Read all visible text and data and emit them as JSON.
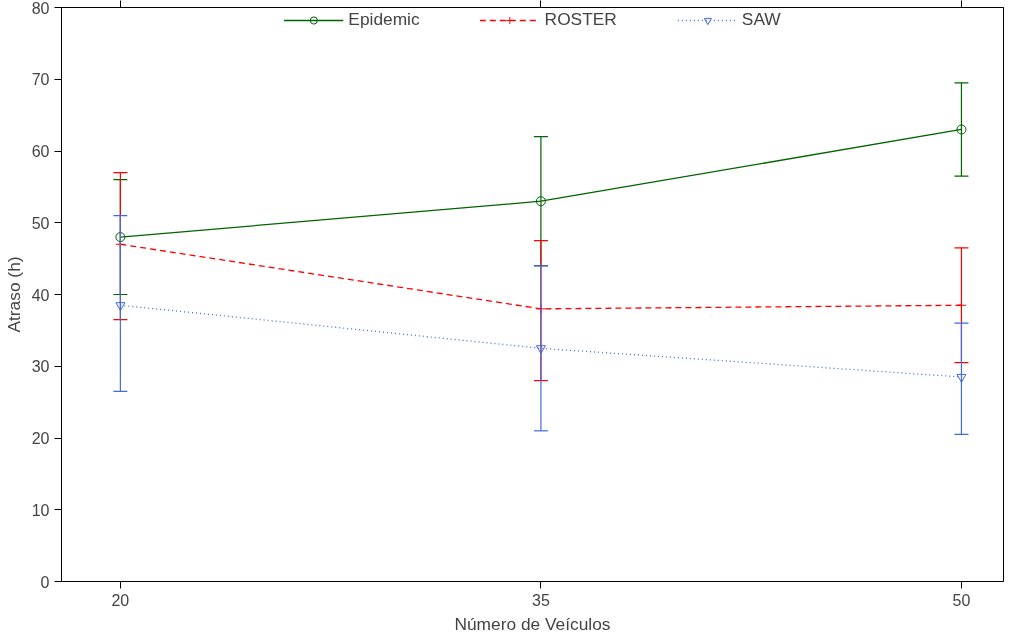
{
  "chart_data": {
    "type": "line",
    "xlabel": "Número de Veículos",
    "ylabel": "Atraso (h)",
    "x": [
      20,
      35,
      50
    ],
    "xlim": [
      17.9,
      51.5
    ],
    "xticks": [
      20,
      35,
      50
    ],
    "ylim": [
      0,
      80
    ],
    "yticks": [
      0,
      10,
      20,
      30,
      40,
      50,
      60,
      70,
      80
    ],
    "grid": false,
    "legend": "top",
    "series": [
      {
        "name": "Epidemic",
        "color": "#006400",
        "marker": "circle",
        "line_style": "solid",
        "values": [
          48,
          53,
          63
        ],
        "errors": [
          [
            40,
            56
          ],
          [
            44,
            62
          ],
          [
            56.5,
            69.5
          ]
        ]
      },
      {
        "name": "ROSTER",
        "color": "#ff0000",
        "marker": "cross",
        "line_style": "dashed",
        "values": [
          47,
          38,
          38.5
        ],
        "errors": [
          [
            36.5,
            57
          ],
          [
            28,
            47.5
          ],
          [
            30.5,
            46.5
          ]
        ]
      },
      {
        "name": "SAW",
        "color": "#4169e1",
        "marker": "triangle",
        "line_style": "dotted",
        "values": [
          38.5,
          32.5,
          28.5
        ],
        "errors": [
          [
            26.5,
            51
          ],
          [
            21,
            44
          ],
          [
            20.5,
            36
          ]
        ]
      }
    ]
  }
}
